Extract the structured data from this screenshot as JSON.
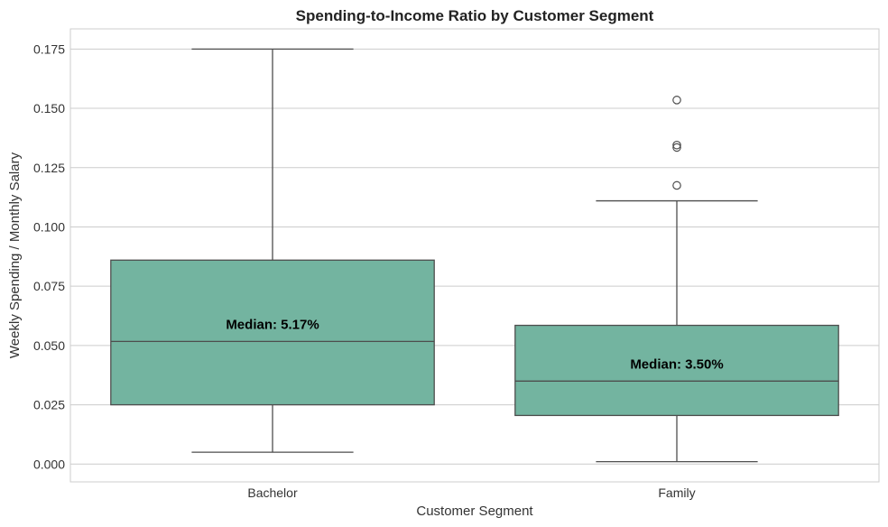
{
  "chart_data": {
    "type": "box",
    "title": "Spending-to-Income Ratio by Customer Segment",
    "xlabel": "Customer Segment",
    "ylabel": "Weekly Spending / Monthly Salary",
    "ylim": [
      -0.0075,
      0.1835
    ],
    "yticks": [
      0.0,
      0.025,
      0.05,
      0.075,
      0.1,
      0.125,
      0.15,
      0.175
    ],
    "ytick_labels": [
      "0.000",
      "0.025",
      "0.050",
      "0.075",
      "0.100",
      "0.125",
      "0.150",
      "0.175"
    ],
    "grid": true,
    "box_color": "#73b4a0",
    "edge_color": "#4d4d4d",
    "categories": [
      "Bachelor",
      "Family"
    ],
    "boxes": [
      {
        "category": "Bachelor",
        "whisker_low": 0.005,
        "q1": 0.025,
        "median": 0.0517,
        "q3": 0.086,
        "whisker_high": 0.175,
        "outliers": [],
        "annotation": "Median: 5.17%"
      },
      {
        "category": "Family",
        "whisker_low": 0.001,
        "q1": 0.0205,
        "median": 0.035,
        "q3": 0.0585,
        "whisker_high": 0.111,
        "outliers": [
          0.1175,
          0.1335,
          0.1345,
          0.1535
        ],
        "annotation": "Median: 3.50%"
      }
    ]
  }
}
